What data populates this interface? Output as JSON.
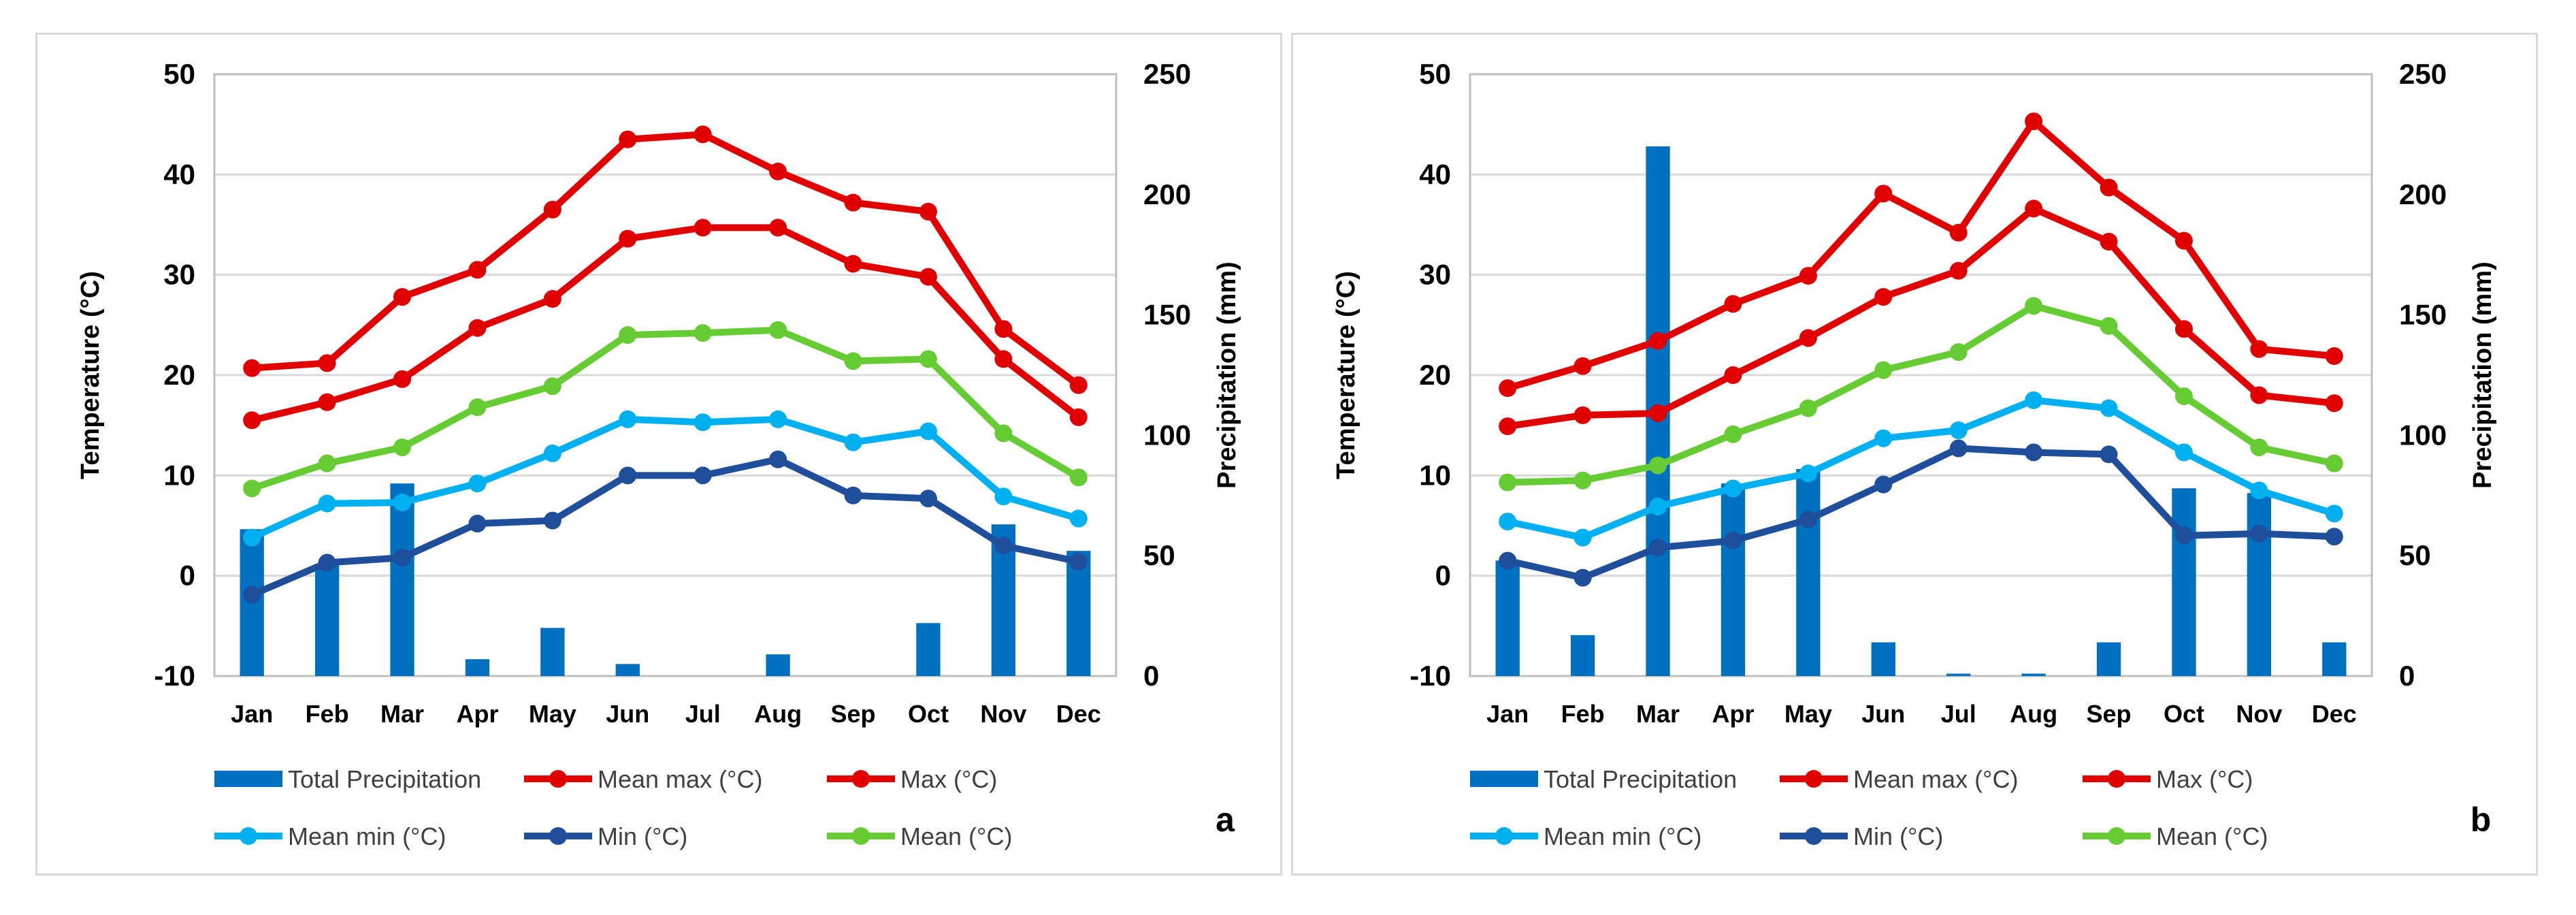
{
  "chart_data": [
    {
      "type": "bar+line",
      "panel_label": "a",
      "categories": [
        "Jan",
        "Feb",
        "Mar",
        "Apr",
        "May",
        "Jun",
        "Jul",
        "Aug",
        "Sep",
        "Oct",
        "Nov",
        "Dec"
      ],
      "ylabel": "Temperature (°C)",
      "y2label": "Precipitation (mm)",
      "ylim": [
        -10,
        50
      ],
      "yticks": [
        "-10",
        "0",
        "10",
        "20",
        "30",
        "40",
        "50"
      ],
      "y2lim": [
        0,
        250
      ],
      "y2ticks": [
        "0",
        "50",
        "100",
        "150",
        "200",
        "250"
      ],
      "grid": "horizontal",
      "bar_series": {
        "name": "Total Precipitation",
        "axis": "right",
        "color": "#0070C0",
        "values": [
          61,
          46,
          80,
          7,
          20,
          5,
          0,
          9,
          0,
          22,
          63,
          52
        ]
      },
      "line_series": [
        {
          "name": "Max (°C)",
          "color": "#E00000",
          "values": [
            20.7,
            21.2,
            27.8,
            30.5,
            36.5,
            43.5,
            44.0,
            40.3,
            37.2,
            36.3,
            24.6,
            19.0
          ]
        },
        {
          "name": "Mean max (°C)",
          "color": "#E00000",
          "values": [
            15.5,
            17.3,
            19.6,
            24.7,
            27.6,
            33.6,
            34.7,
            34.7,
            31.1,
            29.8,
            21.6,
            15.8
          ]
        },
        {
          "name": "Mean (°C)",
          "color": "#66CC33",
          "values": [
            8.7,
            11.2,
            12.8,
            16.8,
            18.9,
            24.0,
            24.2,
            24.5,
            21.4,
            21.6,
            14.2,
            9.8
          ]
        },
        {
          "name": "Mean min (°C)",
          "color": "#00B0F0",
          "values": [
            3.8,
            7.2,
            7.3,
            9.2,
            12.2,
            15.6,
            15.3,
            15.6,
            13.3,
            14.4,
            7.9,
            5.7
          ]
        },
        {
          "name": "Min (°C)",
          "color": "#1F4E9A",
          "values": [
            -1.9,
            1.3,
            1.8,
            5.2,
            5.5,
            10.0,
            10.0,
            11.6,
            8.0,
            7.7,
            3.0,
            1.4
          ]
        }
      ],
      "legend": [
        "Total Precipitation",
        "Mean max (°C)",
        "Max (°C)",
        "Mean min (°C)",
        "Min (°C)",
        "Mean (°C)"
      ],
      "legend_position": "bottom"
    },
    {
      "type": "bar+line",
      "panel_label": "b",
      "categories": [
        "Jan",
        "Feb",
        "Mar",
        "Apr",
        "May",
        "Jun",
        "Jul",
        "Aug",
        "Sep",
        "Oct",
        "Nov",
        "Dec"
      ],
      "ylabel": "Temperature (°C)",
      "y2label": "Precipitation (mm)",
      "ylim": [
        -10,
        50
      ],
      "yticks": [
        "-10",
        "0",
        "10",
        "20",
        "30",
        "40",
        "50"
      ],
      "y2lim": [
        0,
        250
      ],
      "y2ticks": [
        "0",
        "50",
        "100",
        "150",
        "200",
        "250"
      ],
      "grid": "horizontal",
      "bar_series": {
        "name": "Total Precipitation",
        "axis": "right",
        "color": "#0070C0",
        "values": [
          48,
          17,
          220,
          80,
          86,
          14,
          1,
          1,
          14,
          78,
          76,
          14
        ]
      },
      "line_series": [
        {
          "name": "Max (°C)",
          "color": "#E00000",
          "values": [
            18.7,
            20.9,
            23.4,
            27.1,
            29.9,
            38.1,
            34.2,
            45.3,
            38.7,
            33.4,
            22.6,
            21.9
          ]
        },
        {
          "name": "Mean max (°C)",
          "color": "#E00000",
          "values": [
            14.9,
            16.0,
            16.2,
            20.0,
            23.7,
            27.8,
            30.4,
            36.6,
            33.3,
            24.6,
            18.0,
            17.2
          ]
        },
        {
          "name": "Mean (°C)",
          "color": "#66CC33",
          "values": [
            9.3,
            9.5,
            11.0,
            14.1,
            16.7,
            20.5,
            22.3,
            26.9,
            24.9,
            17.9,
            12.8,
            11.2
          ]
        },
        {
          "name": "Mean min (°C)",
          "color": "#00B0F0",
          "values": [
            5.4,
            3.8,
            6.9,
            8.7,
            10.2,
            13.7,
            14.5,
            17.5,
            16.7,
            12.3,
            8.5,
            6.2
          ]
        },
        {
          "name": "Min (°C)",
          "color": "#1F4E9A",
          "values": [
            1.5,
            -0.2,
            2.8,
            3.5,
            5.6,
            9.1,
            12.7,
            12.3,
            12.1,
            4.0,
            4.2,
            3.9
          ]
        }
      ],
      "legend": [
        "Total Precipitation",
        "Mean max (°C)",
        "Max (°C)",
        "Mean min (°C)",
        "Min (°C)",
        "Mean (°C)"
      ],
      "legend_position": "bottom"
    }
  ]
}
